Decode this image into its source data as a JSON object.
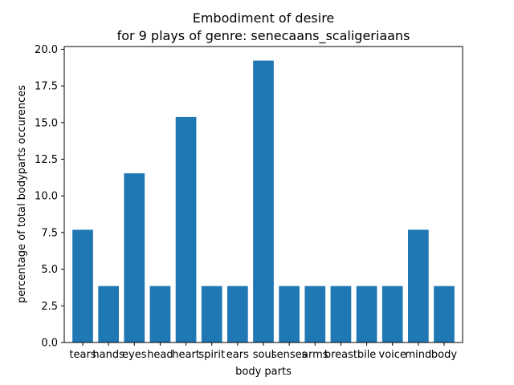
{
  "chart_data": {
    "type": "bar",
    "title_line1": "Embodiment of desire",
    "title_line2": "for 9 plays of genre: senecaans_scaligeriaans",
    "xlabel": "body parts",
    "ylabel": "percentage of total bodyparts occurences",
    "categories": [
      "tears",
      "hands",
      "eyes",
      "head",
      "heart",
      "spirit",
      "ears",
      "soul",
      "senses",
      "arms",
      "breast",
      "bile",
      "voice",
      "mind",
      "body"
    ],
    "values": [
      7.69,
      3.85,
      11.54,
      3.85,
      15.38,
      3.85,
      3.85,
      19.23,
      3.85,
      3.85,
      3.85,
      3.85,
      3.85,
      7.69,
      3.85
    ],
    "ylim": [
      0,
      20.19
    ],
    "yticks": [
      "0.0",
      "2.5",
      "5.0",
      "7.5",
      "10.0",
      "12.5",
      "15.0",
      "17.5",
      "20.0"
    ],
    "grid": false,
    "bar_color": "#1f77b4"
  }
}
